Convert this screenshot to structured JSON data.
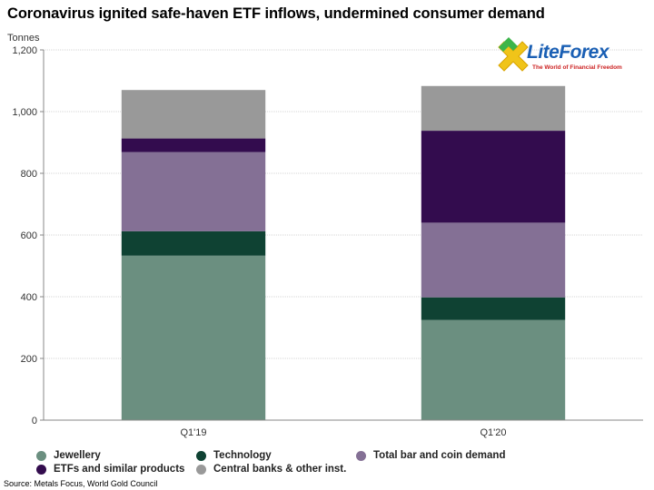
{
  "title": "Coronavirus ignited safe-haven ETF inflows, undermined consumer demand",
  "logo": {
    "name": "LiteForex",
    "tagline": "The World of Financial Freedom"
  },
  "source": "Source: Metals Focus, World Gold Council",
  "chart_data": {
    "type": "bar",
    "stacked": true,
    "ylabel": "Tonnes",
    "ylim": [
      0,
      1200
    ],
    "yticks": [
      0,
      200,
      400,
      600,
      800,
      1000,
      1200
    ],
    "ytick_labels": [
      "0",
      "200",
      "400",
      "600",
      "800",
      "1,000",
      "1,200"
    ],
    "categories": [
      "Q1'19",
      "Q1'20"
    ],
    "grid": true,
    "legend_placement": "bottom",
    "series": [
      {
        "name": "Jewellery",
        "color": "#6b8f80",
        "values": [
          533,
          325
        ]
      },
      {
        "name": "Technology",
        "color": "#0f4233",
        "values": [
          79,
          73
        ]
      },
      {
        "name": "Total bar and coin demand",
        "color": "#847095",
        "values": [
          257,
          242
        ]
      },
      {
        "name": "ETFs and similar products",
        "color": "#330c4e",
        "values": [
          44,
          298
        ]
      },
      {
        "name": "Central banks & other inst.",
        "color": "#999999",
        "values": [
          157,
          145
        ]
      }
    ]
  }
}
